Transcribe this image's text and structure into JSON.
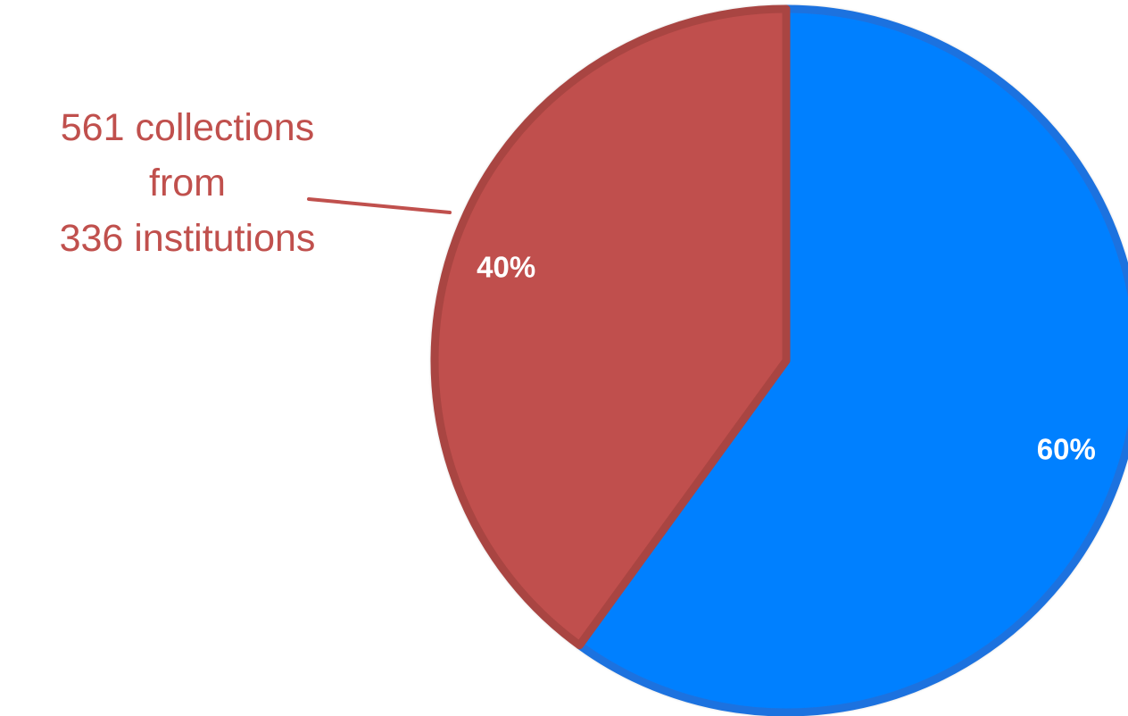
{
  "chart_data": {
    "type": "pie",
    "start_angle_deg": 0,
    "direction": "clockwise",
    "slices": [
      {
        "value": 60,
        "label": "60%",
        "color": "#0080ff",
        "stroke": "#1f72df"
      },
      {
        "value": 40,
        "label": "40%",
        "color": "#c0504d",
        "stroke": "#a94442"
      }
    ],
    "callout": {
      "lines": [
        "561 collections",
        "from",
        "336 institutions"
      ],
      "color": "#c0504d"
    },
    "legend": "none",
    "grid": false
  }
}
